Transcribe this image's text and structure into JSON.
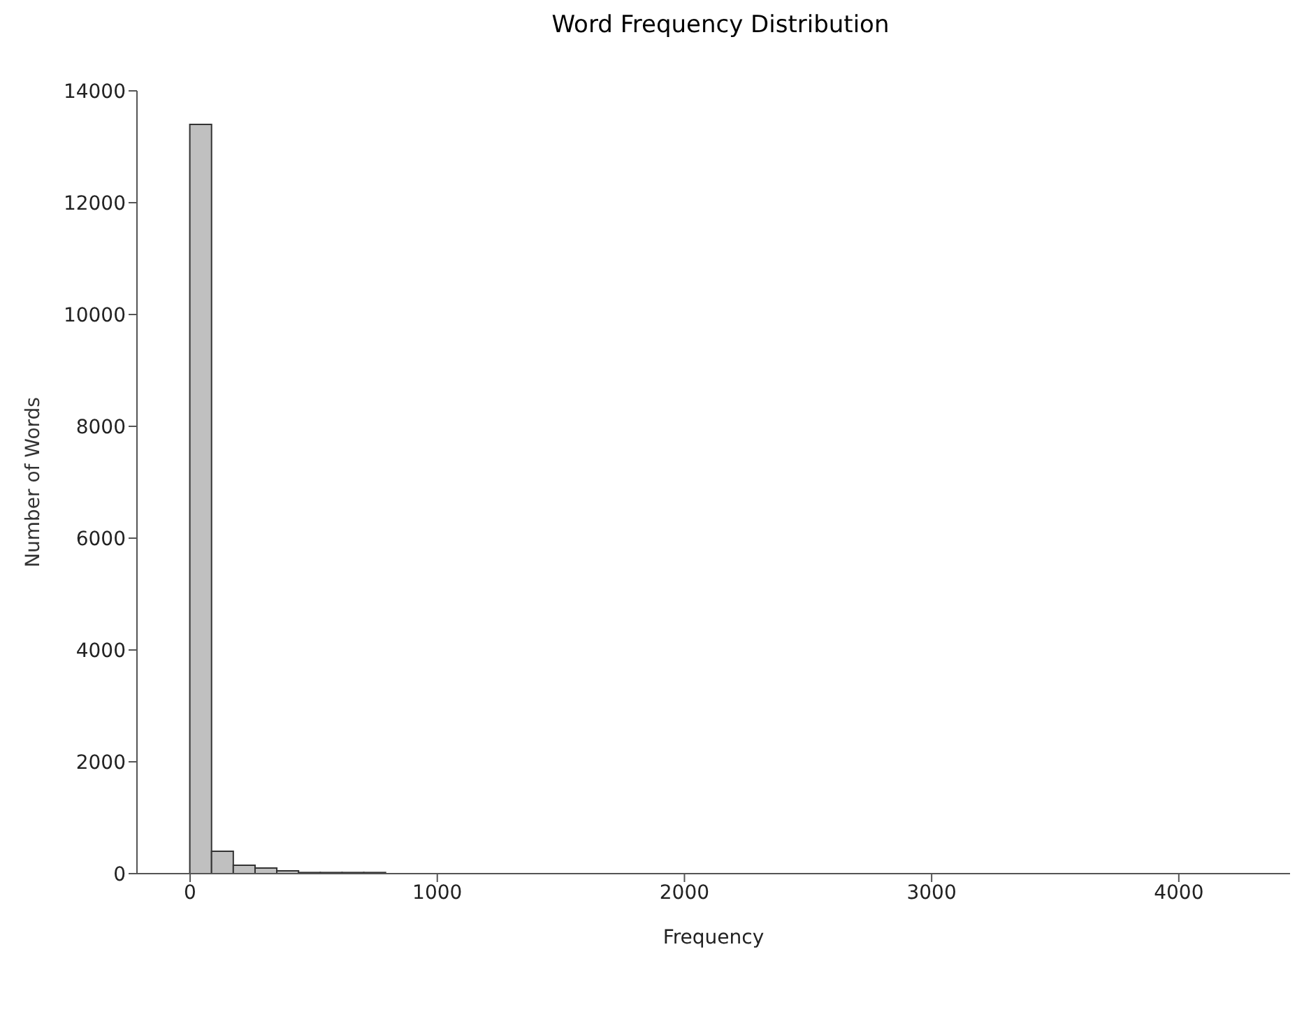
{
  "chart_data": {
    "type": "histogram",
    "title": "Word Frequency Distribution",
    "xlabel": "Frequency",
    "ylabel": "Number of Words",
    "bins": [
      0,
      88,
      176,
      264,
      352,
      440,
      528,
      616,
      704,
      792,
      880,
      968,
      1056,
      1144,
      1232,
      1320,
      1408,
      1496,
      1584,
      1672,
      1760,
      1848,
      1936,
      2024,
      2112,
      2200,
      2288,
      2376,
      2464,
      2552,
      2640,
      2728,
      2816,
      2904,
      2992,
      3080,
      3168,
      3256,
      3344,
      3432,
      3520,
      3608,
      3696,
      3784,
      3872,
      3960,
      4048,
      4136,
      4224,
      4312,
      4400
    ],
    "values": [
      13400,
      400,
      150,
      100,
      50,
      20,
      20,
      20,
      20,
      0,
      0,
      0,
      0,
      0,
      0,
      0,
      0,
      0,
      0,
      0,
      0,
      0,
      0,
      0,
      0,
      0,
      0,
      0,
      0,
      0,
      0,
      0,
      0,
      0,
      0,
      0,
      0,
      0,
      0,
      0,
      0,
      0,
      0,
      0,
      0,
      0,
      0,
      0,
      0,
      0
    ],
    "color": "#c0c0c0",
    "xlim": [
      -215,
      4450
    ],
    "xticks": [
      0,
      1000,
      2000,
      3000,
      4000
    ],
    "ylim": [
      0,
      14000
    ],
    "yticks": [
      0,
      2000,
      4000,
      6000,
      8000,
      10000,
      12000,
      14000
    ],
    "grid": false
  }
}
